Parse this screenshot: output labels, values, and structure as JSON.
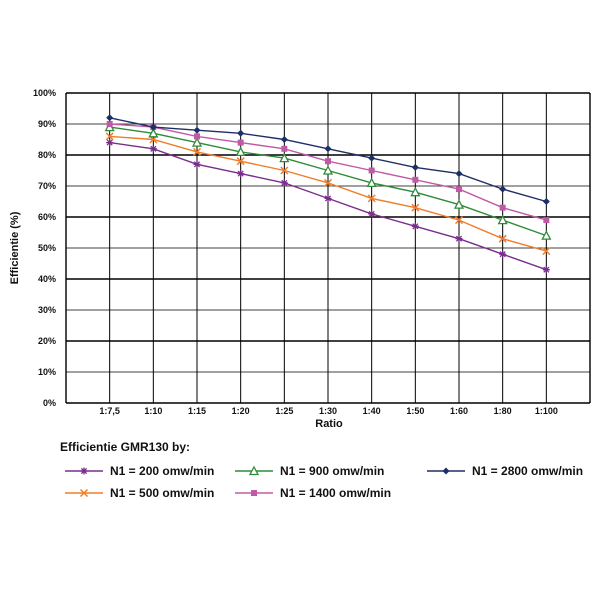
{
  "chart_data": {
    "type": "line",
    "title": "",
    "xlabel": "Ratio",
    "ylabel": "Efficientie (%)",
    "ylim": [
      0,
      100
    ],
    "yticks": [
      "0%",
      "10%",
      "20%",
      "30%",
      "40%",
      "50%",
      "60%",
      "70%",
      "80%",
      "90%",
      "100%"
    ],
    "categories": [
      "1:7,5",
      "1:10",
      "1:15",
      "1:20",
      "1:25",
      "1:30",
      "1:40",
      "1:50",
      "1:60",
      "1:80",
      "1:100"
    ],
    "grid": true,
    "legend_title": "Efficientie GMR130 by:",
    "legend_placement": "bottom",
    "series": [
      {
        "name": "N1 = 200 omw/min",
        "color": "#7b2d8e",
        "marker": "asterisk",
        "values": [
          84,
          82,
          77,
          74,
          71,
          66,
          61,
          57,
          53,
          48,
          43
        ]
      },
      {
        "name": "N1 = 500 omw/min",
        "color": "#f07d2a",
        "marker": "x",
        "values": [
          86,
          85,
          81,
          78,
          75,
          71,
          66,
          63,
          59,
          53,
          49
        ]
      },
      {
        "name": "N1 = 900 omw/min",
        "color": "#2e8b3a",
        "marker": "triangle",
        "values": [
          89,
          87,
          84,
          81,
          79,
          75,
          71,
          68,
          64,
          59,
          54
        ]
      },
      {
        "name": "N1 = 1400 omw/min",
        "color": "#c05aa6",
        "marker": "square",
        "values": [
          90,
          89,
          86,
          84,
          82,
          78,
          75,
          72,
          69,
          63,
          59
        ]
      },
      {
        "name": "N1 = 2800 omw/min",
        "color": "#1e2f66",
        "marker": "diamond",
        "values": [
          92,
          89,
          88,
          87,
          85,
          82,
          79,
          76,
          74,
          69,
          65
        ]
      }
    ]
  }
}
